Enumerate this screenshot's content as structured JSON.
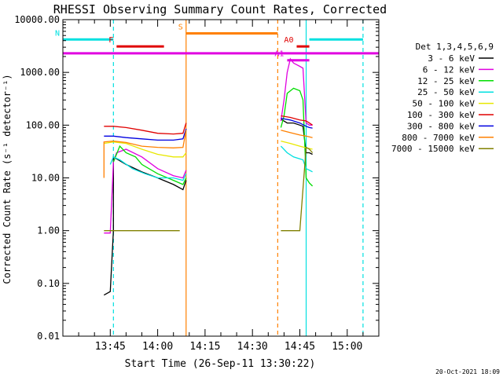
{
  "chart_data": {
    "type": "line",
    "title": "RHESSI Observing Summary Count Rates, Corrected",
    "xlabel": "Start Time (26-Sep-11 13:30:22)",
    "ylabel": "Corrected Count Rate (s⁻¹ detector⁻¹)",
    "xlim": [
      "13:30",
      "15:10"
    ],
    "ylim": [
      0.01,
      10000
    ],
    "yscale": "log",
    "x_ticks": [
      "13:45",
      "14:00",
      "14:15",
      "14:30",
      "14:45",
      "15:00"
    ],
    "y_ticks": [
      "0.01",
      "0.10",
      "1.00",
      "10.00",
      "100.00",
      "1000.00",
      "10000.00"
    ],
    "footer": "20-Oct-2021 18:09",
    "legend": {
      "placement": "right",
      "title": "Det 1,3,4,5,6,9",
      "entries": [
        {
          "label": "3 - 6 keV",
          "color": "#000000"
        },
        {
          "label": "6 - 12 keV",
          "color": "#e000e0"
        },
        {
          "label": "12 - 25 keV",
          "color": "#00dd00"
        },
        {
          "label": "25 - 50 keV",
          "color": "#00e0e0"
        },
        {
          "label": "50 - 100 keV",
          "color": "#e8e800"
        },
        {
          "label": "100 - 300 keV",
          "color": "#e00000"
        },
        {
          "label": "300 - 800 keV",
          "color": "#0000e0"
        },
        {
          "label": "800 - 7000 keV",
          "color": "#ff8000"
        },
        {
          "label": "7000 - 15000 keV",
          "color": "#808000"
        }
      ]
    },
    "flags": [
      {
        "label": "N",
        "color": "#00e0e0",
        "level": 4200,
        "segments": [
          [
            "13:30",
            "13:46"
          ],
          [
            "14:48",
            "15:05"
          ]
        ]
      },
      {
        "label": "F",
        "color": "#e00000",
        "level": 3100,
        "segments": [
          [
            "13:47",
            "14:02"
          ]
        ]
      },
      {
        "label": "S",
        "color": "#ff8000",
        "level": 5500,
        "segments": [
          [
            "14:09",
            "14:38"
          ]
        ]
      },
      {
        "label": "A0",
        "color": "#e00000",
        "level": 3100,
        "segments": [
          [
            "14:44",
            "14:48"
          ]
        ]
      },
      {
        "label": "",
        "color": "#e000e0",
        "level": 2300,
        "segments": [
          [
            "13:30",
            "15:10"
          ]
        ]
      },
      {
        "label": "A1",
        "color": "#e000e0",
        "level": 1700,
        "segments": [
          [
            "14:41",
            "14:48"
          ]
        ]
      }
    ],
    "vlines": [
      {
        "t": "13:46",
        "color": "#00e0e0",
        "style": "dashed"
      },
      {
        "t": "14:09",
        "color": "#ff8000",
        "style": "solid"
      },
      {
        "t": "14:38",
        "color": "#ff8000",
        "style": "dashed"
      },
      {
        "t": "14:47",
        "color": "#00e0e0",
        "style": "solid"
      },
      {
        "t": "15:05",
        "color": "#00e0e0",
        "style": "dashed"
      }
    ],
    "series": [
      {
        "name": "3 - 6 keV",
        "color": "#000000",
        "segments": [
          [
            [
              "13:43",
              0.06
            ],
            [
              "13:45",
              0.07
            ],
            [
              "13:46",
              1.0
            ],
            [
              "13:46",
              25
            ],
            [
              "13:50",
              18
            ],
            [
              "13:55",
              13
            ],
            [
              "14:00",
              10
            ],
            [
              "14:05",
              7.5
            ],
            [
              "14:08",
              6
            ],
            [
              "14:09",
              9
            ]
          ],
          [
            [
              "14:39",
              130
            ],
            [
              "14:41",
              110
            ],
            [
              "14:43",
              110
            ],
            [
              "14:45",
              100
            ],
            [
              "14:46",
              95
            ],
            [
              "14:47",
              30
            ],
            [
              "14:48",
              30
            ],
            [
              "14:49",
              28
            ]
          ]
        ]
      },
      {
        "name": "6 - 12 keV",
        "color": "#e000e0",
        "segments": [
          [
            [
              "13:43",
              0.9
            ],
            [
              "13:45",
              0.9
            ],
            [
              "13:46",
              20
            ],
            [
              "13:47",
              30
            ],
            [
              "13:50",
              35
            ],
            [
              "13:55",
              25
            ],
            [
              "14:00",
              15
            ],
            [
              "14:05",
              11
            ],
            [
              "14:08",
              10
            ],
            [
              "14:09",
              14
            ]
          ],
          [
            [
              "14:39",
              120
            ],
            [
              "14:40",
              300
            ],
            [
              "14:41",
              1000
            ],
            [
              "14:42",
              1800
            ],
            [
              "14:43",
              1500
            ],
            [
              "14:45",
              1300
            ],
            [
              "14:46",
              1200
            ],
            [
              "14:47",
              110
            ],
            [
              "14:48",
              100
            ],
            [
              "14:49",
              100
            ]
          ]
        ]
      },
      {
        "name": "12 - 25 keV",
        "color": "#00dd00",
        "segments": [
          [
            [
              "13:46",
              20
            ],
            [
              "13:48",
              40
            ],
            [
              "13:50",
              30
            ],
            [
              "13:53",
              25
            ],
            [
              "13:55",
              18
            ],
            [
              "14:00",
              12
            ],
            [
              "14:05",
              9
            ],
            [
              "14:08",
              7.5
            ],
            [
              "14:09",
              10
            ]
          ],
          [
            [
              "14:39",
              90
            ],
            [
              "14:40",
              150
            ],
            [
              "14:41",
              400
            ],
            [
              "14:43",
              500
            ],
            [
              "14:45",
              450
            ],
            [
              "14:46",
              300
            ],
            [
              "14:47",
              10
            ],
            [
              "14:48",
              8
            ],
            [
              "14:49",
              7
            ]
          ]
        ]
      },
      {
        "name": "25 - 50 keV",
        "color": "#00e0e0",
        "segments": [
          [
            [
              "13:45",
              18
            ],
            [
              "13:46",
              25
            ],
            [
              "13:48",
              22
            ],
            [
              "13:52",
              15
            ],
            [
              "13:56",
              12
            ],
            [
              "14:00",
              10
            ],
            [
              "14:05",
              10
            ],
            [
              "14:08",
              9
            ],
            [
              "14:09",
              12
            ]
          ],
          [
            [
              "14:39",
              40
            ],
            [
              "14:41",
              30
            ],
            [
              "14:43",
              25
            ],
            [
              "14:45",
              23
            ],
            [
              "14:46",
              22
            ],
            [
              "14:47",
              15
            ],
            [
              "14:48",
              14
            ],
            [
              "14:49",
              13
            ]
          ]
        ]
      },
      {
        "name": "50 - 100 keV",
        "color": "#e8e800",
        "segments": [
          [
            [
              "13:43",
              45
            ],
            [
              "13:46",
              48
            ],
            [
              "13:50",
              45
            ],
            [
              "13:55",
              35
            ],
            [
              "14:00",
              28
            ],
            [
              "14:05",
              25
            ],
            [
              "14:08",
              25
            ],
            [
              "14:09",
              30
            ]
          ],
          [
            [
              "14:39",
              50
            ],
            [
              "14:42",
              45
            ],
            [
              "14:45",
              40
            ],
            [
              "14:47",
              37
            ],
            [
              "14:48",
              36
            ],
            [
              "14:49",
              35
            ]
          ]
        ]
      },
      {
        "name": "100 - 300 keV",
        "color": "#e00000",
        "segments": [
          [
            [
              "13:43",
              95
            ],
            [
              "13:46",
              95
            ],
            [
              "13:50",
              90
            ],
            [
              "13:55",
              80
            ],
            [
              "14:00",
              70
            ],
            [
              "14:05",
              68
            ],
            [
              "14:08",
              70
            ],
            [
              "14:09",
              110
            ]
          ],
          [
            [
              "14:39",
              150
            ],
            [
              "14:42",
              140
            ],
            [
              "14:45",
              125
            ],
            [
              "14:47",
              120
            ],
            [
              "14:48",
              110
            ],
            [
              "14:49",
              100
            ]
          ]
        ]
      },
      {
        "name": "300 - 800 keV",
        "color": "#0000e0",
        "segments": [
          [
            [
              "13:43",
              62
            ],
            [
              "13:46",
              62
            ],
            [
              "13:50",
              58
            ],
            [
              "13:55",
              55
            ],
            [
              "14:00",
              52
            ],
            [
              "14:05",
              52
            ],
            [
              "14:08",
              55
            ],
            [
              "14:09",
              85
            ]
          ],
          [
            [
              "14:39",
              135
            ],
            [
              "14:42",
              125
            ],
            [
              "14:45",
              110
            ],
            [
              "14:47",
              95
            ],
            [
              "14:48",
              90
            ],
            [
              "14:49",
              88
            ]
          ]
        ]
      },
      {
        "name": "800 - 7000 keV",
        "color": "#ff8000",
        "segments": [
          [
            [
              "13:43",
              10
            ],
            [
              "13:43",
              48
            ],
            [
              "13:46",
              50
            ],
            [
              "13:50",
              47
            ],
            [
              "13:55",
              40
            ],
            [
              "14:00",
              38
            ],
            [
              "14:05",
              37
            ],
            [
              "14:08",
              38
            ],
            [
              "14:09",
              80
            ]
          ],
          [
            [
              "14:39",
              80
            ],
            [
              "14:42",
              72
            ],
            [
              "14:45",
              65
            ],
            [
              "14:47",
              62
            ],
            [
              "14:48",
              60
            ],
            [
              "14:49",
              58
            ]
          ]
        ]
      },
      {
        "name": "7000 - 15000 keV",
        "color": "#808000",
        "segments": [
          [
            [
              "13:43",
              1.0
            ],
            [
              "13:50",
              1.0
            ],
            [
              "14:00",
              1.0
            ],
            [
              "14:07",
              1.0
            ]
          ],
          [
            [
              "14:39",
              1.0
            ],
            [
              "14:42",
              1.0
            ],
            [
              "14:45",
              1.0
            ],
            [
              "14:47",
              38
            ],
            [
              "14:48",
              35
            ],
            [
              "14:49",
              30
            ]
          ]
        ]
      }
    ]
  }
}
